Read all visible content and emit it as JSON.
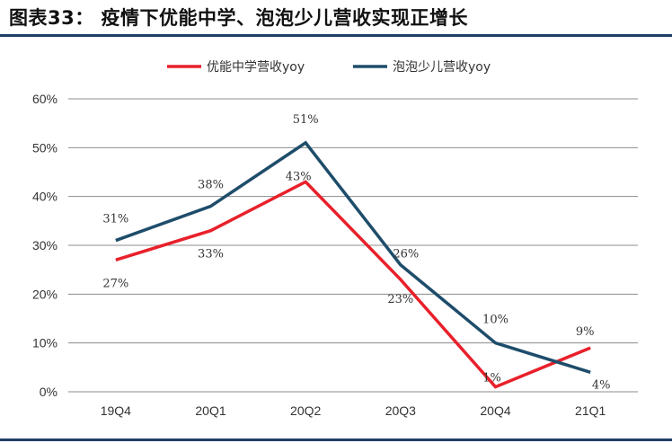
{
  "header": {
    "title": "图表33： 疫情下优能中学、泡泡少儿营收实现正增长"
  },
  "colors": {
    "accent_dark": "#1f3f66"
  },
  "chart_data": {
    "type": "line",
    "categories": [
      "19Q4",
      "20Q1",
      "20Q2",
      "20Q3",
      "20Q4",
      "21Q1"
    ],
    "ylim": [
      0,
      60
    ],
    "yticks": [
      0,
      10,
      20,
      30,
      40,
      50,
      60
    ],
    "ytick_labels": [
      "0%",
      "10%",
      "20%",
      "30%",
      "40%",
      "50%",
      "60%"
    ],
    "grid": true,
    "legend_position": "top",
    "series": [
      {
        "name": "优能中学营收yoy",
        "color": "#e8202a",
        "values": [
          27,
          33,
          43,
          23,
          1,
          9
        ],
        "labels": [
          "27%",
          "33%",
          "43%",
          "23%",
          "1%",
          "9%"
        ]
      },
      {
        "name": "泡泡少儿营收yoy",
        "color": "#1e4d6b",
        "values": [
          31,
          38,
          51,
          26,
          10,
          4
        ],
        "labels": [
          "31%",
          "38%",
          "51%",
          "26%",
          "10%",
          "4%"
        ]
      }
    ]
  }
}
